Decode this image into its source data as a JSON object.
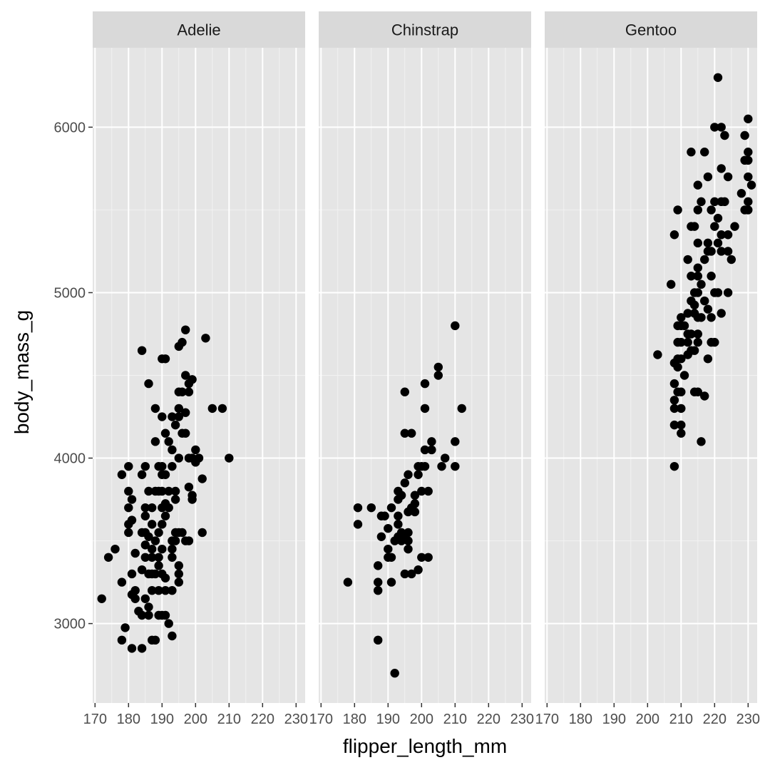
{
  "chart_data": {
    "type": "scatter",
    "facet_by": "species",
    "xlabel": "flipper_length_mm",
    "ylabel": "body_mass_g",
    "xlim": [
      169.3,
      232.7
    ],
    "ylim": [
      2520,
      6480
    ],
    "x_ticks": [
      170,
      180,
      190,
      200,
      210,
      220,
      230
    ],
    "x_tick_labels": [
      "170",
      "180",
      "190",
      "200",
      "210",
      "220",
      "230"
    ],
    "y_ticks": [
      3000,
      4000,
      5000,
      6000
    ],
    "y_tick_labels": [
      "3000",
      "4000",
      "5000",
      "6000"
    ],
    "grid": true,
    "panel_background": "#e5e5e5",
    "strip_background": "#d9d9d9",
    "point_color": "#000000",
    "panels": [
      {
        "label": "Adelie",
        "points": [
          [
            172,
            3150
          ],
          [
            174,
            3400
          ],
          [
            176,
            3450
          ],
          [
            178,
            3900
          ],
          [
            178,
            3250
          ],
          [
            178,
            2900
          ],
          [
            179,
            2975
          ],
          [
            180,
            3950
          ],
          [
            180,
            3800
          ],
          [
            180,
            3700
          ],
          [
            180,
            3600
          ],
          [
            180,
            3550
          ],
          [
            181,
            3750
          ],
          [
            181,
            3625
          ],
          [
            181,
            3300
          ],
          [
            181,
            3175
          ],
          [
            181,
            2850
          ],
          [
            182,
            3425
          ],
          [
            182,
            3200
          ],
          [
            182,
            3150
          ],
          [
            183,
            3075
          ],
          [
            184,
            4650
          ],
          [
            184,
            3900
          ],
          [
            184,
            3550
          ],
          [
            184,
            3325
          ],
          [
            184,
            3050
          ],
          [
            184,
            2850
          ],
          [
            185,
            3950
          ],
          [
            185,
            3700
          ],
          [
            185,
            3650
          ],
          [
            185,
            3550
          ],
          [
            185,
            3475
          ],
          [
            185,
            3400
          ],
          [
            185,
            3150
          ],
          [
            186,
            4450
          ],
          [
            186,
            3800
          ],
          [
            186,
            3525
          ],
          [
            186,
            3300
          ],
          [
            186,
            3100
          ],
          [
            186,
            3050
          ],
          [
            187,
            3700
          ],
          [
            187,
            3600
          ],
          [
            187,
            3450
          ],
          [
            187,
            3400
          ],
          [
            187,
            3300
          ],
          [
            187,
            3200
          ],
          [
            187,
            2900
          ],
          [
            188,
            4300
          ],
          [
            188,
            4100
          ],
          [
            188,
            3800
          ],
          [
            188,
            3500
          ],
          [
            188,
            3300
          ],
          [
            188,
            2900
          ],
          [
            189,
            3950
          ],
          [
            189,
            3800
          ],
          [
            189,
            3550
          ],
          [
            189,
            3400
          ],
          [
            189,
            3350
          ],
          [
            189,
            3200
          ],
          [
            189,
            3050
          ],
          [
            190,
            4600
          ],
          [
            190,
            4250
          ],
          [
            190,
            3950
          ],
          [
            190,
            3900
          ],
          [
            190,
            3800
          ],
          [
            190,
            3700
          ],
          [
            190,
            3600
          ],
          [
            190,
            3450
          ],
          [
            190,
            3300
          ],
          [
            190,
            3050
          ],
          [
            191,
            4600
          ],
          [
            191,
            4150
          ],
          [
            191,
            3900
          ],
          [
            191,
            3725
          ],
          [
            191,
            3650
          ],
          [
            191,
            3275
          ],
          [
            191,
            3200
          ],
          [
            191,
            3050
          ],
          [
            192,
            4100
          ],
          [
            192,
            3800
          ],
          [
            192,
            3700
          ],
          [
            192,
            3000
          ],
          [
            193,
            4250
          ],
          [
            193,
            4050
          ],
          [
            193,
            3950
          ],
          [
            193,
            3500
          ],
          [
            193,
            3450
          ],
          [
            193,
            3400
          ],
          [
            193,
            3200
          ],
          [
            193,
            2925
          ],
          [
            194,
            4200
          ],
          [
            194,
            3800
          ],
          [
            194,
            3750
          ],
          [
            194,
            3550
          ],
          [
            194,
            3500
          ],
          [
            195,
            4675
          ],
          [
            195,
            4400
          ],
          [
            195,
            4300
          ],
          [
            195,
            4250
          ],
          [
            195,
            4000
          ],
          [
            195,
            3550
          ],
          [
            195,
            3350
          ],
          [
            195,
            3300
          ],
          [
            195,
            3250
          ],
          [
            196,
            4700
          ],
          [
            196,
            4400
          ],
          [
            196,
            4150
          ],
          [
            196,
            3550
          ],
          [
            197,
            4775
          ],
          [
            197,
            4500
          ],
          [
            197,
            4275
          ],
          [
            197,
            4150
          ],
          [
            197,
            3500
          ],
          [
            198,
            4450
          ],
          [
            198,
            4400
          ],
          [
            198,
            4000
          ],
          [
            198,
            3825
          ],
          [
            198,
            3500
          ],
          [
            199,
            4475
          ],
          [
            199,
            4000
          ],
          [
            199,
            3775
          ],
          [
            199,
            3750
          ],
          [
            200,
            4050
          ],
          [
            200,
            3975
          ],
          [
            201,
            4000
          ],
          [
            202,
            3875
          ],
          [
            202,
            3550
          ],
          [
            203,
            4725
          ],
          [
            205,
            4300
          ],
          [
            208,
            4300
          ],
          [
            210,
            4000
          ]
        ]
      },
      {
        "label": "Chinstrap",
        "points": [
          [
            178,
            3250
          ],
          [
            181,
            3700
          ],
          [
            181,
            3600
          ],
          [
            185,
            3700
          ],
          [
            187,
            3350
          ],
          [
            187,
            3250
          ],
          [
            187,
            3200
          ],
          [
            187,
            2900
          ],
          [
            188,
            3650
          ],
          [
            188,
            3525
          ],
          [
            189,
            3650
          ],
          [
            190,
            3575
          ],
          [
            190,
            3450
          ],
          [
            190,
            3400
          ],
          [
            191,
            3700
          ],
          [
            191,
            3400
          ],
          [
            191,
            3250
          ],
          [
            192,
            3500
          ],
          [
            192,
            2700
          ],
          [
            193,
            3800
          ],
          [
            193,
            3750
          ],
          [
            193,
            3650
          ],
          [
            193,
            3600
          ],
          [
            193,
            3525
          ],
          [
            194,
            3775
          ],
          [
            194,
            3550
          ],
          [
            194,
            3500
          ],
          [
            195,
            4400
          ],
          [
            195,
            4150
          ],
          [
            195,
            3850
          ],
          [
            195,
            3525
          ],
          [
            195,
            3300
          ],
          [
            196,
            3900
          ],
          [
            196,
            3675
          ],
          [
            196,
            3550
          ],
          [
            196,
            3500
          ],
          [
            196,
            3450
          ],
          [
            197,
            4150
          ],
          [
            197,
            3700
          ],
          [
            197,
            3300
          ],
          [
            198,
            3775
          ],
          [
            198,
            3725
          ],
          [
            198,
            3675
          ],
          [
            199,
            3950
          ],
          [
            199,
            3900
          ],
          [
            199,
            3325
          ],
          [
            200,
            3950
          ],
          [
            200,
            3800
          ],
          [
            200,
            3400
          ],
          [
            201,
            4450
          ],
          [
            201,
            4300
          ],
          [
            201,
            4050
          ],
          [
            201,
            3950
          ],
          [
            202,
            3800
          ],
          [
            202,
            3400
          ],
          [
            203,
            4100
          ],
          [
            203,
            4050
          ],
          [
            205,
            4550
          ],
          [
            205,
            4500
          ],
          [
            206,
            3950
          ],
          [
            207,
            4000
          ],
          [
            210,
            4800
          ],
          [
            210,
            4100
          ],
          [
            210,
            3950
          ],
          [
            212,
            4300
          ]
        ]
      },
      {
        "label": "Gentoo",
        "points": [
          [
            203,
            4625
          ],
          [
            207,
            5050
          ],
          [
            208,
            5350
          ],
          [
            208,
            4575
          ],
          [
            208,
            4450
          ],
          [
            208,
            4350
          ],
          [
            208,
            4300
          ],
          [
            208,
            4200
          ],
          [
            208,
            3950
          ],
          [
            209,
            5500
          ],
          [
            209,
            4800
          ],
          [
            209,
            4700
          ],
          [
            209,
            4600
          ],
          [
            209,
            4550
          ],
          [
            209,
            4400
          ],
          [
            210,
            4850
          ],
          [
            210,
            4800
          ],
          [
            210,
            4700
          ],
          [
            210,
            4600
          ],
          [
            210,
            4400
          ],
          [
            210,
            4300
          ],
          [
            210,
            4200
          ],
          [
            210,
            4150
          ],
          [
            211,
            4800
          ],
          [
            211,
            4500
          ],
          [
            212,
            5200
          ],
          [
            212,
            4875
          ],
          [
            212,
            4750
          ],
          [
            212,
            4700
          ],
          [
            212,
            4625
          ],
          [
            213,
            5850
          ],
          [
            213,
            5400
          ],
          [
            213,
            5100
          ],
          [
            213,
            4950
          ],
          [
            213,
            4750
          ],
          [
            213,
            4650
          ],
          [
            214,
            5400
          ],
          [
            214,
            5000
          ],
          [
            214,
            4925
          ],
          [
            214,
            4875
          ],
          [
            214,
            4650
          ],
          [
            214,
            4400
          ],
          [
            215,
            5650
          ],
          [
            215,
            5500
          ],
          [
            215,
            5300
          ],
          [
            215,
            5150
          ],
          [
            215,
            5100
          ],
          [
            215,
            5000
          ],
          [
            215,
            4850
          ],
          [
            215,
            4750
          ],
          [
            215,
            4700
          ],
          [
            215,
            4400
          ],
          [
            216,
            5550
          ],
          [
            216,
            5050
          ],
          [
            216,
            4850
          ],
          [
            216,
            4100
          ],
          [
            217,
            5850
          ],
          [
            217,
            5200
          ],
          [
            217,
            4950
          ],
          [
            217,
            4375
          ],
          [
            218,
            5700
          ],
          [
            218,
            5300
          ],
          [
            218,
            5250
          ],
          [
            218,
            4900
          ],
          [
            218,
            4600
          ],
          [
            219,
            5500
          ],
          [
            219,
            5250
          ],
          [
            219,
            5100
          ],
          [
            219,
            4850
          ],
          [
            219,
            4700
          ],
          [
            220,
            6000
          ],
          [
            220,
            5550
          ],
          [
            220,
            5400
          ],
          [
            220,
            5000
          ],
          [
            220,
            4700
          ],
          [
            221,
            6300
          ],
          [
            221,
            5450
          ],
          [
            221,
            5300
          ],
          [
            221,
            5000
          ],
          [
            222,
            6000
          ],
          [
            222,
            5750
          ],
          [
            222,
            5550
          ],
          [
            222,
            5350
          ],
          [
            222,
            5250
          ],
          [
            222,
            4875
          ],
          [
            223,
            5950
          ],
          [
            223,
            5550
          ],
          [
            224,
            5700
          ],
          [
            224,
            5350
          ],
          [
            224,
            5250
          ],
          [
            224,
            5000
          ],
          [
            225,
            5200
          ],
          [
            226,
            5400
          ],
          [
            228,
            5600
          ],
          [
            229,
            5950
          ],
          [
            229,
            5800
          ],
          [
            229,
            5500
          ],
          [
            230,
            6050
          ],
          [
            230,
            5850
          ],
          [
            230,
            5800
          ],
          [
            230,
            5700
          ],
          [
            230,
            5550
          ],
          [
            230,
            5500
          ],
          [
            231,
            5650
          ]
        ]
      }
    ]
  }
}
